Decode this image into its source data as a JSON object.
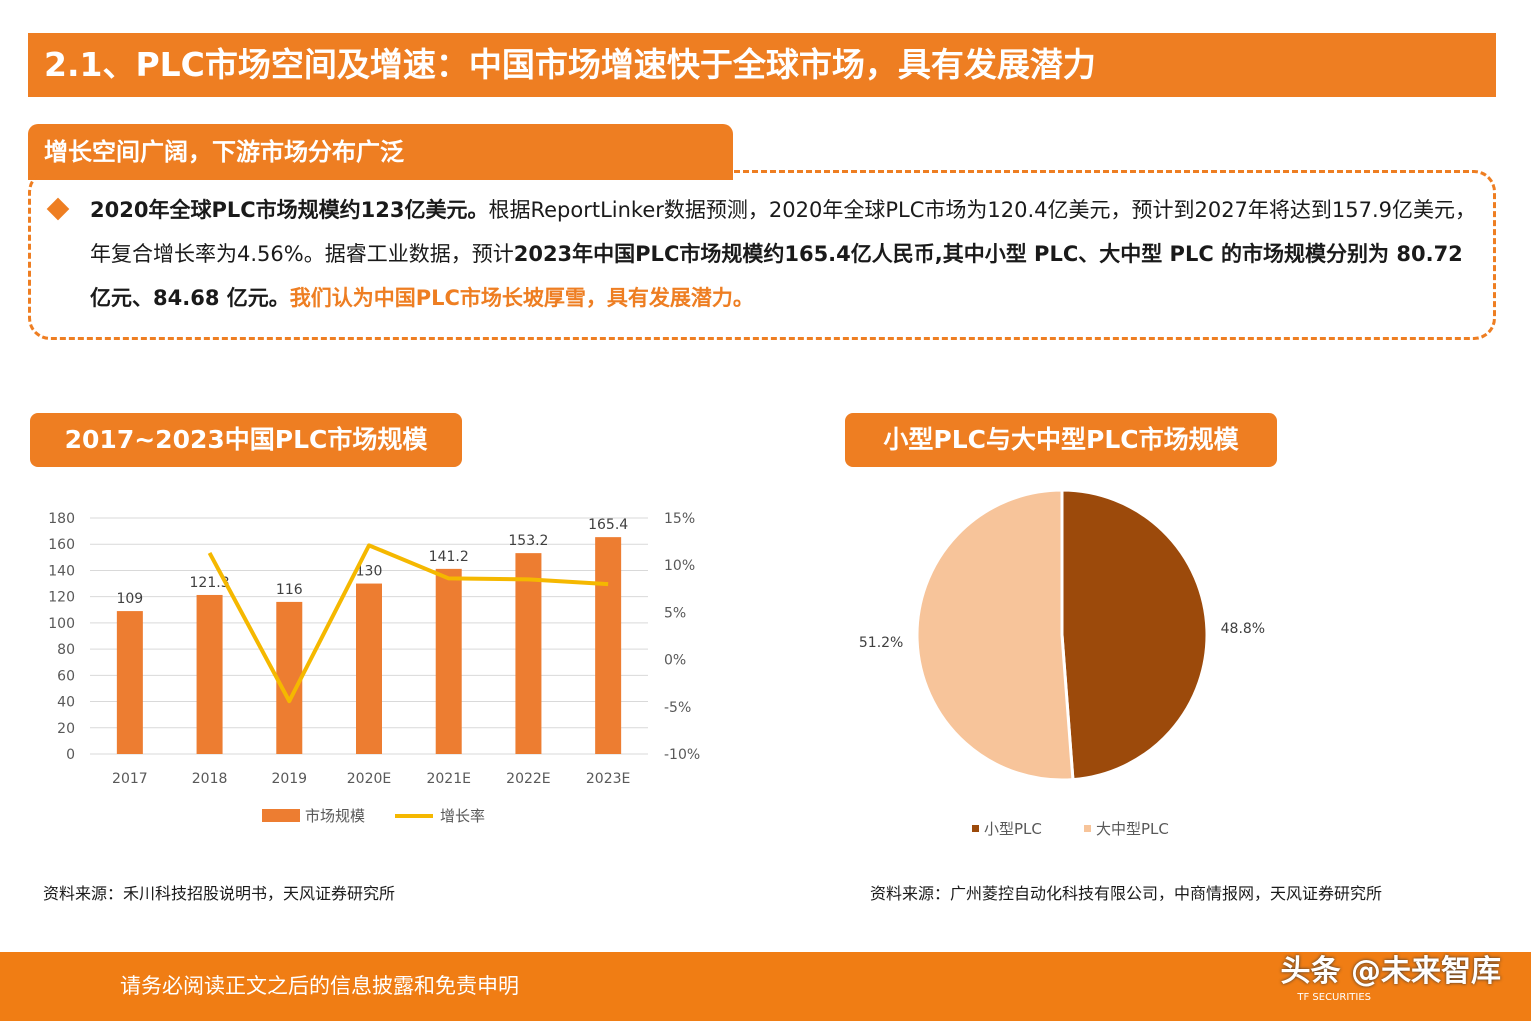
{
  "page": {
    "title": "2.1、PLC市场空间及增速：中国市场增速快于全球市场，具有发展潜力",
    "section_tab": "增长空间广阔，下游市场分布广泛"
  },
  "summary": {
    "s1_bold": "2020年全球PLC市场规模约123亿美元。",
    "s1_text": "根据ReportLinker数据预测，2020年全球PLC市场为120.4亿美元，预计到2027年将达到157.9亿美元，年复合增长率为4.56%。据睿工业数据，预计",
    "s2_bold": "2023年中国PLC市场规模约165.4亿人民币,其中小型 PLC、大中型 PLC 的市场规模分别为 80.72 亿元、84.68 亿元。",
    "s3_highlight": "我们认为中国PLC市场长坡厚雪，具有发展潜力。"
  },
  "chart_left": {
    "tab_title": "2017~2023中国PLC市场规模",
    "source": "资料来源：禾川科技招股说明书，天风证券研究所"
  },
  "chart_right": {
    "tab_title": "小型PLC与大中型PLC市场规模",
    "source": "资料来源：广州菱控自动化科技有限公司，中商情报网，天风证券研究所"
  },
  "footer": {
    "disclaimer": "请务必阅读正文之后的信息披露和免责申明",
    "watermark": "头条 @未来智库",
    "sub": "TF SECURITIES"
  },
  "colors": {
    "accent": "#ee7e22",
    "bar": "#ed7d31",
    "line": "#f5b800",
    "pie_small": "#9c4a0b",
    "pie_large": "#f7c49a"
  },
  "chart_data": [
    {
      "type": "bar",
      "categories": [
        "2017",
        "2018",
        "2019",
        "2020E",
        "2021E",
        "2022E",
        "2023E"
      ],
      "series": [
        {
          "name": "市场规模",
          "type": "bar",
          "axis": "left",
          "values": [
            109,
            121.3,
            116,
            130,
            141.2,
            153.2,
            165.4
          ],
          "labels": [
            "109",
            "121.3",
            "116",
            "130",
            "141.2",
            "153.2",
            "165.4"
          ]
        },
        {
          "name": "增长率",
          "type": "line",
          "axis": "right",
          "values": [
            null,
            11.3,
            -4.4,
            12.1,
            8.6,
            8.5,
            8.0
          ]
        }
      ],
      "ylim": [
        0,
        180
      ],
      "yticks": [
        "180",
        "160",
        "140",
        "120",
        "100",
        "80",
        "60",
        "40",
        "20",
        "0"
      ],
      "y2lim": [
        -10,
        15
      ],
      "y2ticks": [
        "15%",
        "10%",
        "5%",
        "0%",
        "-5%",
        "-10%"
      ],
      "grid": true,
      "legend": "bottom"
    },
    {
      "type": "pie",
      "labels": [
        "小型PLC",
        "大中型PLC"
      ],
      "values": [
        48.8,
        51.2
      ],
      "value_labels": [
        "48.8%",
        "51.2%"
      ],
      "legend": "bottom"
    }
  ]
}
